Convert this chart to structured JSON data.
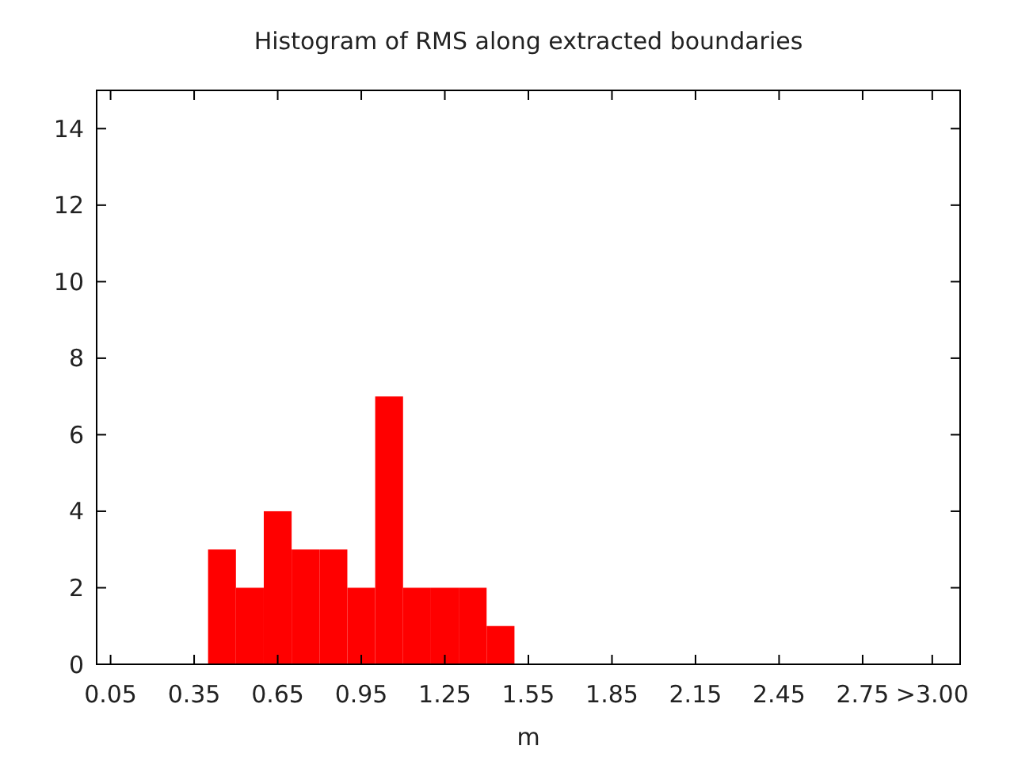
{
  "chart_data": {
    "type": "histogram",
    "title": "Histogram of RMS along extracted boundaries",
    "xlabel": "m",
    "bins": [
      0.4,
      0.5,
      0.6,
      0.7,
      0.8,
      0.9,
      1.0,
      1.1,
      1.2,
      1.3,
      1.4,
      1.5
    ],
    "values": [
      3,
      2,
      4,
      3,
      3,
      2,
      7,
      2,
      2,
      2,
      1
    ],
    "color": "#ff0000",
    "xlim": [
      0,
      3.1
    ],
    "xticks": [
      0.05,
      0.35,
      0.65,
      0.95,
      1.25,
      1.55,
      1.85,
      2.15,
      2.45,
      2.75,
      {
        "value": 3.0,
        "label": ">3.00"
      }
    ],
    "ylim": [
      0,
      15
    ],
    "yticks": [
      0,
      2,
      4,
      6,
      8,
      10,
      12,
      14
    ],
    "grid": false
  }
}
